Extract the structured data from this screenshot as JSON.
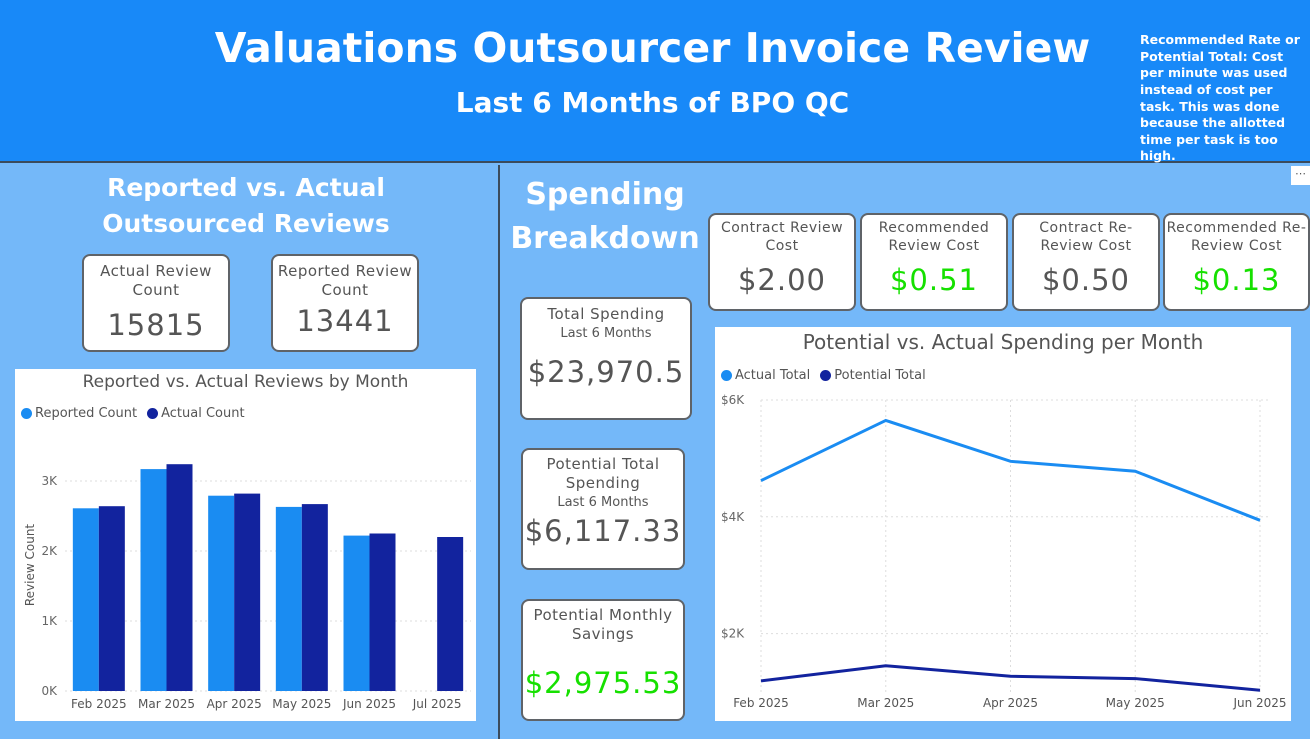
{
  "header": {
    "title": "Valuations Outsourcer Invoice Review",
    "subtitle": "Last 6 Months of BPO QC",
    "note": "Recommended Rate or Potential Total:  Cost per minute was used instead of cost per task. This was done because the allotted time per task is too high."
  },
  "left": {
    "section_title": "Reported vs. Actual Outsourced Reviews",
    "actual_card": {
      "label": "Actual Review Count",
      "value": "15815"
    },
    "reported_card": {
      "label": "Reported Review Count",
      "value": "13441"
    }
  },
  "right": {
    "section_title": "Spending Breakdown",
    "cost_cards": [
      {
        "label": "Contract Review Cost",
        "value": "$2.00",
        "highlight": false
      },
      {
        "label": "Recommended Review Cost",
        "value": "$0.51",
        "highlight": true
      },
      {
        "label": "Contract Re-Review Cost",
        "value": "$0.50",
        "highlight": false
      },
      {
        "label": "Recommended Re-Review Cost",
        "value": "$0.13",
        "highlight": true
      }
    ],
    "total_card": {
      "label": "Total Spending",
      "sub": "Last 6 Months",
      "value": "$23,970.5"
    },
    "potential_card": {
      "label": "Potential Total Spending",
      "sub": "Last 6 Months",
      "value": "$6,117.33"
    },
    "savings_card": {
      "label": "Potential Monthly Savings",
      "value": "$2,975.53"
    },
    "more_icon": "ellipsis-icon"
  },
  "colors": {
    "light_blue": "#1a8cf2",
    "dark_blue": "#12239e",
    "green": "#16e000",
    "header_blue": "#1889f8",
    "panel_blue": "#74b8f9"
  },
  "chart_data": [
    {
      "type": "bar",
      "title": "Reported vs. Actual Reviews by Month",
      "xlabel": "",
      "ylabel": "Review Count",
      "categories": [
        "Feb 2025",
        "Mar 2025",
        "Apr 2025",
        "May 2025",
        "Jun 2025",
        "Jul 2025"
      ],
      "series": [
        {
          "name": "Reported Count",
          "color": "#1a8cf2",
          "values": [
            2610,
            3170,
            2790,
            2630,
            2220,
            null
          ]
        },
        {
          "name": "Actual Count",
          "color": "#12239e",
          "values": [
            2640,
            3240,
            2820,
            2670,
            2250,
            2200
          ]
        }
      ],
      "ylim": [
        0,
        3600
      ],
      "yticks": [
        "0K",
        "1K",
        "2K",
        "3K"
      ],
      "grid": true,
      "legend": "top-left"
    },
    {
      "type": "line",
      "title": "Potential vs. Actual Spending per Month",
      "xlabel": "",
      "ylabel": "",
      "categories": [
        "Feb 2025",
        "Mar 2025",
        "Apr 2025",
        "May 2025",
        "Jun 2025"
      ],
      "series": [
        {
          "name": "Actual Total",
          "color": "#1a8cf2",
          "values": [
            4620,
            5650,
            4950,
            4780,
            3940
          ]
        },
        {
          "name": "Potential Total",
          "color": "#12239e",
          "values": [
            1190,
            1450,
            1270,
            1230,
            1030
          ]
        }
      ],
      "ylim": [
        1000,
        6000
      ],
      "yticks": [
        "$2K",
        "$4K",
        "$6K"
      ],
      "grid": true,
      "legend": "top-left"
    }
  ]
}
